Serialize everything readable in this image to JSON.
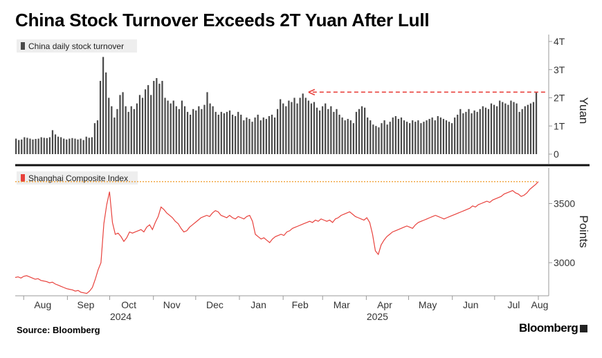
{
  "title": "China Stock Turnover Exceeds 2T Yuan After Lull",
  "source": "Source: Bloomberg",
  "brand": "Bloomberg",
  "colors": {
    "turnover": "#4a4a4a",
    "index": "#e8413c",
    "reference": "#f0a033",
    "arrow": "#e8413c"
  },
  "chart_data": [
    {
      "type": "bar",
      "legend": "China daily stock turnover",
      "ylabel": "Yuan",
      "ylim": [
        0,
        4
      ],
      "yticks": [
        "0",
        "1T",
        "2T",
        "3T",
        "4T"
      ],
      "annotation": "dashed arrow from latest value back to Feb peak",
      "x_start": "2024-07-26",
      "x_end": "2025-08-01",
      "values": [
        0.55,
        0.5,
        0.52,
        0.6,
        0.58,
        0.55,
        0.52,
        0.54,
        0.55,
        0.6,
        0.58,
        0.57,
        0.6,
        0.85,
        0.7,
        0.62,
        0.6,
        0.55,
        0.52,
        0.55,
        0.57,
        0.55,
        0.52,
        0.55,
        0.5,
        0.62,
        0.58,
        0.6,
        1.1,
        1.2,
        2.6,
        3.45,
        2.9,
        2.0,
        1.7,
        1.3,
        1.6,
        2.1,
        2.2,
        1.7,
        1.5,
        1.7,
        1.6,
        1.8,
        2.1,
        2.0,
        2.3,
        2.45,
        2.1,
        2.6,
        2.7,
        2.5,
        2.6,
        2.0,
        1.9,
        1.8,
        1.9,
        1.7,
        1.6,
        1.9,
        1.7,
        1.5,
        1.4,
        1.6,
        1.55,
        1.7,
        1.6,
        1.75,
        2.2,
        1.8,
        1.7,
        1.5,
        1.4,
        1.5,
        1.45,
        1.5,
        1.55,
        1.4,
        1.35,
        1.5,
        1.4,
        1.2,
        1.3,
        1.25,
        1.15,
        1.3,
        1.4,
        1.2,
        1.3,
        1.25,
        1.35,
        1.4,
        1.3,
        1.6,
        1.95,
        1.8,
        1.7,
        1.9,
        1.85,
        2.0,
        1.8,
        2.0,
        2.15,
        2.0,
        1.9,
        1.8,
        1.85,
        1.65,
        1.55,
        1.7,
        1.8,
        1.6,
        1.7,
        1.5,
        1.6,
        1.4,
        1.3,
        1.2,
        1.25,
        1.2,
        1.1,
        1.5,
        1.6,
        1.7,
        1.65,
        1.3,
        1.2,
        1.05,
        1.0,
        0.95,
        1.1,
        1.2,
        1.05,
        1.15,
        1.3,
        1.35,
        1.25,
        1.3,
        1.2,
        1.15,
        1.1,
        1.2,
        1.15,
        1.2,
        1.1,
        1.15,
        1.2,
        1.25,
        1.3,
        1.2,
        1.35,
        1.3,
        1.25,
        1.2,
        1.15,
        1.1,
        1.3,
        1.4,
        1.6,
        1.45,
        1.5,
        1.6,
        1.45,
        1.55,
        1.5,
        1.6,
        1.7,
        1.65,
        1.6,
        1.8,
        1.75,
        1.7,
        1.9,
        1.85,
        1.8,
        1.75,
        1.9,
        1.85,
        1.8,
        1.5,
        1.6,
        1.7,
        1.75,
        1.8,
        1.85,
        2.2
      ]
    },
    {
      "type": "line",
      "legend": "Shanghai Composite Index",
      "ylabel": "Points",
      "ylim": [
        2720,
        3760
      ],
      "yticks": [
        "3000",
        "3500"
      ],
      "reference_line": 3685,
      "x_start": "2024-07-26",
      "x_end": "2025-08-01",
      "values": [
        2875,
        2880,
        2870,
        2885,
        2890,
        2880,
        2870,
        2860,
        2865,
        2850,
        2845,
        2840,
        2830,
        2835,
        2820,
        2810,
        2800,
        2790,
        2780,
        2775,
        2770,
        2760,
        2765,
        2750,
        2745,
        2740,
        2760,
        2790,
        2860,
        2940,
        3000,
        3330,
        3490,
        3600,
        3340,
        3240,
        3250,
        3220,
        3180,
        3210,
        3260,
        3250,
        3260,
        3270,
        3280,
        3260,
        3300,
        3320,
        3280,
        3340,
        3390,
        3470,
        3450,
        3420,
        3400,
        3380,
        3350,
        3330,
        3290,
        3260,
        3270,
        3300,
        3320,
        3340,
        3360,
        3380,
        3390,
        3400,
        3390,
        3420,
        3440,
        3430,
        3400,
        3390,
        3380,
        3400,
        3380,
        3370,
        3390,
        3380,
        3370,
        3390,
        3400,
        3350,
        3240,
        3220,
        3200,
        3210,
        3190,
        3170,
        3200,
        3220,
        3230,
        3240,
        3230,
        3260,
        3270,
        3290,
        3300,
        3310,
        3320,
        3330,
        3340,
        3350,
        3340,
        3360,
        3350,
        3370,
        3360,
        3350,
        3360,
        3340,
        3370,
        3380,
        3400,
        3410,
        3420,
        3430,
        3410,
        3390,
        3380,
        3370,
        3360,
        3380,
        3340,
        3240,
        3100,
        3070,
        3150,
        3190,
        3220,
        3240,
        3260,
        3270,
        3280,
        3290,
        3300,
        3310,
        3300,
        3290,
        3320,
        3340,
        3350,
        3360,
        3370,
        3380,
        3390,
        3400,
        3390,
        3380,
        3370,
        3380,
        3390,
        3400,
        3410,
        3420,
        3430,
        3440,
        3450,
        3460,
        3480,
        3470,
        3490,
        3500,
        3510,
        3520,
        3510,
        3530,
        3540,
        3550,
        3560,
        3580,
        3590,
        3600,
        3610,
        3590,
        3580,
        3560,
        3570,
        3590,
        3620,
        3640,
        3660,
        3685
      ]
    }
  ],
  "x_axis": {
    "months": [
      "Aug",
      "Sep",
      "Oct",
      "Nov",
      "Dec",
      "Jan",
      "Feb",
      "Mar",
      "Apr",
      "May",
      "Jun",
      "Jul",
      "Aug"
    ],
    "years": [
      "2024",
      "2025"
    ]
  }
}
